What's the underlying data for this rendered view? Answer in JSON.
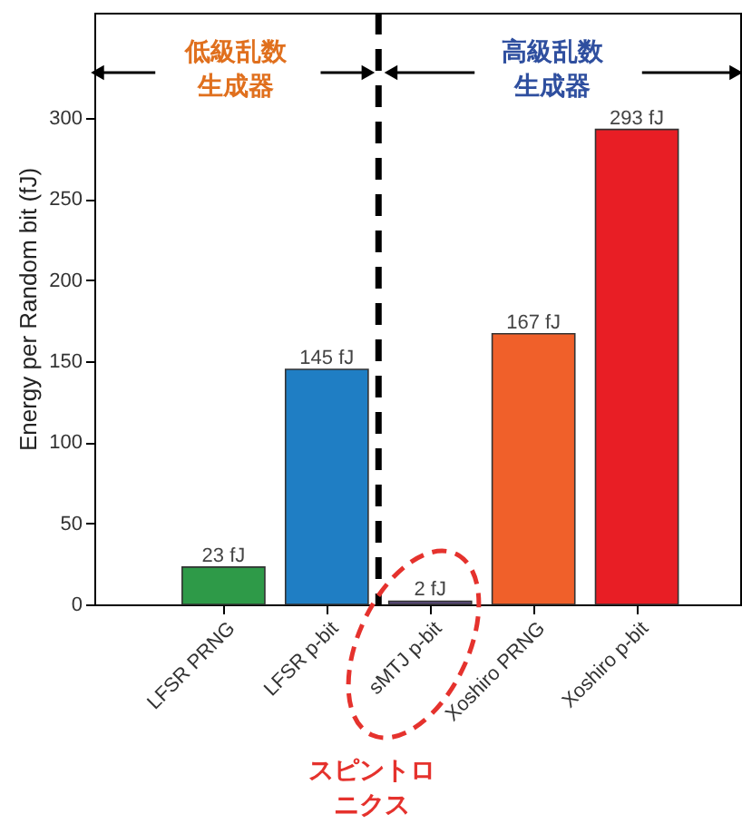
{
  "chart_data": {
    "type": "bar",
    "ylabel": "Energy per Random bit (fJ)",
    "categories": [
      "LFSR PRNG",
      "LFSR p-bit",
      "sMTJ p-bit",
      "Xoshiro PRNG",
      "Xoshiro p-bit"
    ],
    "values": [
      23,
      145,
      2,
      167,
      293
    ],
    "colors": [
      "#2e9a48",
      "#1f7ec4",
      "#5a4a7a",
      "#f0602a",
      "#e81e25"
    ],
    "value_labels": [
      "23 fJ",
      "145 fJ",
      "2 fJ",
      "167 fJ",
      "293 fJ"
    ],
    "ylim": [
      0,
      365
    ],
    "yticks": [
      0,
      50,
      100,
      150,
      200,
      250,
      300
    ],
    "grid": false,
    "annotations": [
      "低級乱数生成器",
      "高級乱数生成器",
      "スピントロニクス"
    ]
  }
}
